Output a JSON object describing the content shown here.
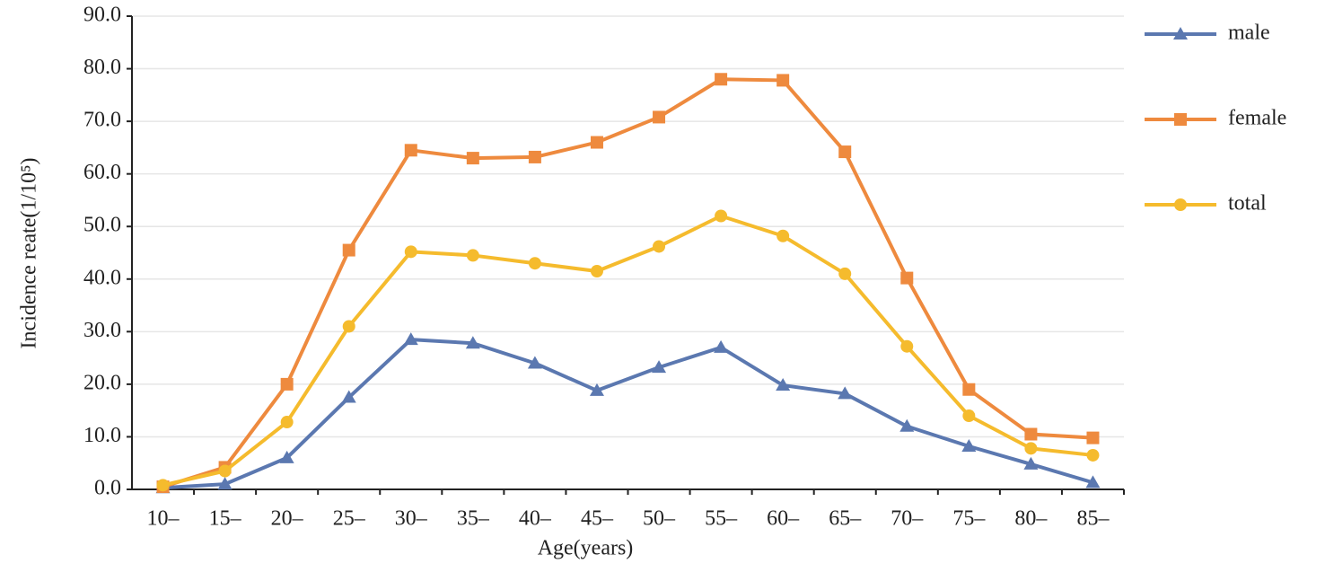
{
  "chart_data": {
    "type": "line",
    "x_label": "Age(years)",
    "y_label": "Incidence reate(1/10⁵)",
    "categories": [
      "10–",
      "15–",
      "20–",
      "25–",
      "30–",
      "35–",
      "40–",
      "45–",
      "50–",
      "55–",
      "60–",
      "65–",
      "70–",
      "75–",
      "80–",
      "85–"
    ],
    "series": [
      {
        "name": "male",
        "color": "#5b78b0",
        "marker": "triangle",
        "values": [
          0.3,
          1.0,
          6.0,
          17.5,
          28.5,
          27.8,
          24.0,
          18.8,
          23.2,
          27.0,
          19.8,
          18.2,
          12.0,
          8.2,
          4.8,
          1.3
        ]
      },
      {
        "name": "female",
        "color": "#ee8a3e",
        "marker": "square",
        "values": [
          0.5,
          4.2,
          20.0,
          45.5,
          64.5,
          63.0,
          63.2,
          66.0,
          70.8,
          78.0,
          77.8,
          64.2,
          40.2,
          19.0,
          10.5,
          9.8
        ]
      },
      {
        "name": "total",
        "color": "#f5bb2d",
        "marker": "circle",
        "values": [
          0.8,
          3.5,
          12.8,
          31.0,
          45.2,
          44.5,
          43.0,
          41.5,
          46.2,
          52.0,
          48.2,
          41.0,
          27.2,
          14.0,
          7.8,
          6.5
        ]
      }
    ],
    "ylim": [
      0,
      90
    ],
    "yticks": [
      {
        "value": 0,
        "label": "0.0"
      },
      {
        "value": 10,
        "label": "10.0"
      },
      {
        "value": 20,
        "label": "20.0"
      },
      {
        "value": 30,
        "label": "30.0"
      },
      {
        "value": 40,
        "label": "40.0"
      },
      {
        "value": 50,
        "label": "50.0"
      },
      {
        "value": 60,
        "label": "60.0"
      },
      {
        "value": 70,
        "label": "70.0"
      },
      {
        "value": 80,
        "label": "80.0"
      },
      {
        "value": 90,
        "label": "90.0"
      }
    ],
    "grid": true,
    "legend": "right"
  }
}
